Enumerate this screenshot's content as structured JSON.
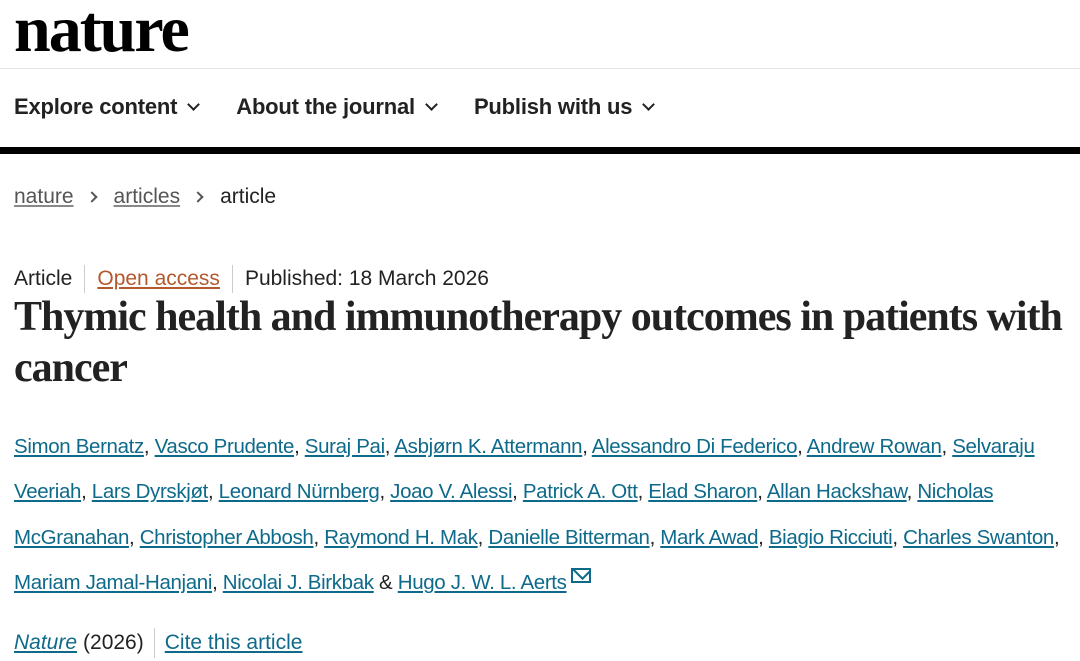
{
  "logo": "nature",
  "nav": [
    {
      "label": "Explore content"
    },
    {
      "label": "About the journal"
    },
    {
      "label": "Publish with us"
    }
  ],
  "breadcrumb": {
    "items": [
      "nature",
      "articles"
    ],
    "current": "article"
  },
  "meta": {
    "type": "Article",
    "access": "Open access",
    "published": "Published: 18 March 2026"
  },
  "title": "Thymic health and immunotherapy outcomes in patients with cancer",
  "authors": [
    "Simon Bernatz",
    "Vasco Prudente",
    "Suraj Pai",
    "Asbjørn K. Attermann",
    "Alessandro Di Federico",
    "Andrew Rowan",
    "Selvaraju Veeriah",
    "Lars Dyrskjøt",
    "Leonard Nürnberg",
    "Joao V. Alessi",
    "Patrick A. Ott",
    "Elad Sharon",
    "Allan Hackshaw",
    "Nicholas McGranahan",
    "Christopher Abbosh",
    "Raymond H. Mak",
    "Danielle Bitterman",
    "Mark Awad",
    "Biagio Ricciuti",
    "Charles Swanton",
    "Mariam Jamal-Hanjani",
    "Nicolai J. Birkbak",
    "Hugo J. W. L. Aerts"
  ],
  "authors_last_sep": "&",
  "footer": {
    "journal": "Nature",
    "year": "(2026)",
    "cite": "Cite this article"
  },
  "colors": {
    "link": "#0e6a8a",
    "open_access": "#b3592d"
  }
}
